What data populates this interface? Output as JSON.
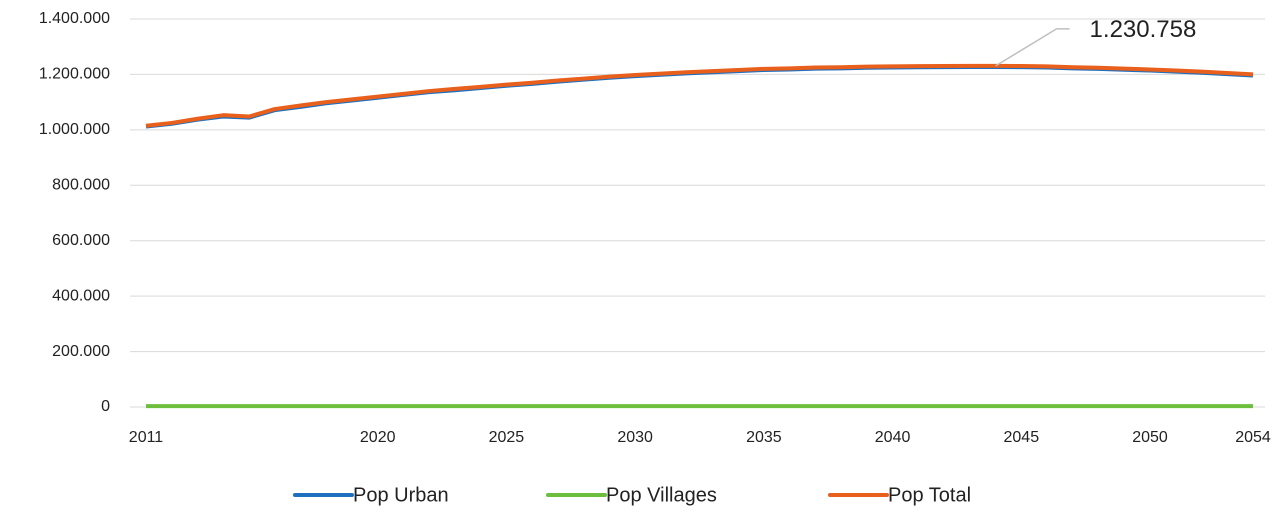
{
  "chart_data": {
    "type": "line",
    "x": [
      2011,
      2012,
      2013,
      2014,
      2015,
      2016,
      2017,
      2018,
      2019,
      2020,
      2021,
      2022,
      2023,
      2024,
      2025,
      2026,
      2027,
      2028,
      2029,
      2030,
      2031,
      2032,
      2033,
      2034,
      2035,
      2036,
      2037,
      2038,
      2039,
      2040,
      2041,
      2042,
      2043,
      2044,
      2045,
      2046,
      2047,
      2048,
      2049,
      2050,
      2051,
      2052,
      2053,
      2054
    ],
    "series": [
      {
        "name": "Pop Urban",
        "color": "#1f6fbf",
        "values": [
          1012000,
          1022000,
          1037000,
          1048000,
          1044000,
          1071000,
          1083000,
          1096000,
          1106000,
          1116000,
          1126000,
          1136000,
          1143000,
          1151000,
          1159000,
          1166000,
          1174000,
          1181000,
          1188000,
          1194000,
          1199000,
          1204000,
          1208000,
          1212000,
          1216000,
          1218000,
          1221000,
          1222000,
          1224000,
          1225000,
          1226000,
          1226500,
          1226700,
          1226758,
          1226500,
          1225000,
          1222000,
          1220000,
          1217000,
          1214000,
          1210000,
          1206000,
          1201000,
          1196000
        ]
      },
      {
        "name": "Pop Villages",
        "color": "#6cbf3c",
        "values": [
          3000,
          3000,
          3000,
          3000,
          3000,
          3000,
          3000,
          3000,
          3000,
          3000,
          3000,
          3000,
          3000,
          3000,
          3000,
          3000,
          3000,
          3000,
          3000,
          3000,
          3000,
          3000,
          3000,
          3000,
          3000,
          3000,
          3000,
          3000,
          3000,
          3000,
          3000,
          3000,
          3000,
          3000,
          3000,
          3000,
          3000,
          3000,
          3000,
          3000,
          3000,
          3000,
          3000,
          3000
        ]
      },
      {
        "name": "Pop Total",
        "color": "#e8601c",
        "values": [
          1015000,
          1025000,
          1040000,
          1053000,
          1048000,
          1075000,
          1088000,
          1100000,
          1110000,
          1120000,
          1130000,
          1140000,
          1148000,
          1155000,
          1163000,
          1170000,
          1178000,
          1185000,
          1192000,
          1198000,
          1203000,
          1208000,
          1212000,
          1216000,
          1220000,
          1222000,
          1225000,
          1226000,
          1228000,
          1229000,
          1230000,
          1230500,
          1230700,
          1230758,
          1230500,
          1229000,
          1226000,
          1224000,
          1221000,
          1218000,
          1214000,
          1210000,
          1205000,
          1200000
        ]
      }
    ],
    "xlim": [
      2011,
      2054
    ],
    "xticks": [
      2011,
      2020,
      2025,
      2030,
      2035,
      2040,
      2045,
      2050,
      2054
    ],
    "ylim": [
      0,
      1400000
    ],
    "yticks": [
      0,
      {
        "value": 200000,
        "label": "200.000"
      },
      {
        "value": 400000,
        "label": "400.000"
      },
      {
        "value": 600000,
        "label": "600.000"
      },
      {
        "value": 800000,
        "label": "800.000"
      },
      {
        "value": 1000000,
        "label": "1.000.000"
      },
      {
        "value": 1200000,
        "label": "1.200.000"
      },
      {
        "value": 1400000,
        "label": "1.400.000"
      }
    ],
    "grid": true,
    "legend": "bottom",
    "annotations": [
      {
        "text": "1.230.758",
        "x": 2044,
        "y": 1230758
      }
    ]
  }
}
